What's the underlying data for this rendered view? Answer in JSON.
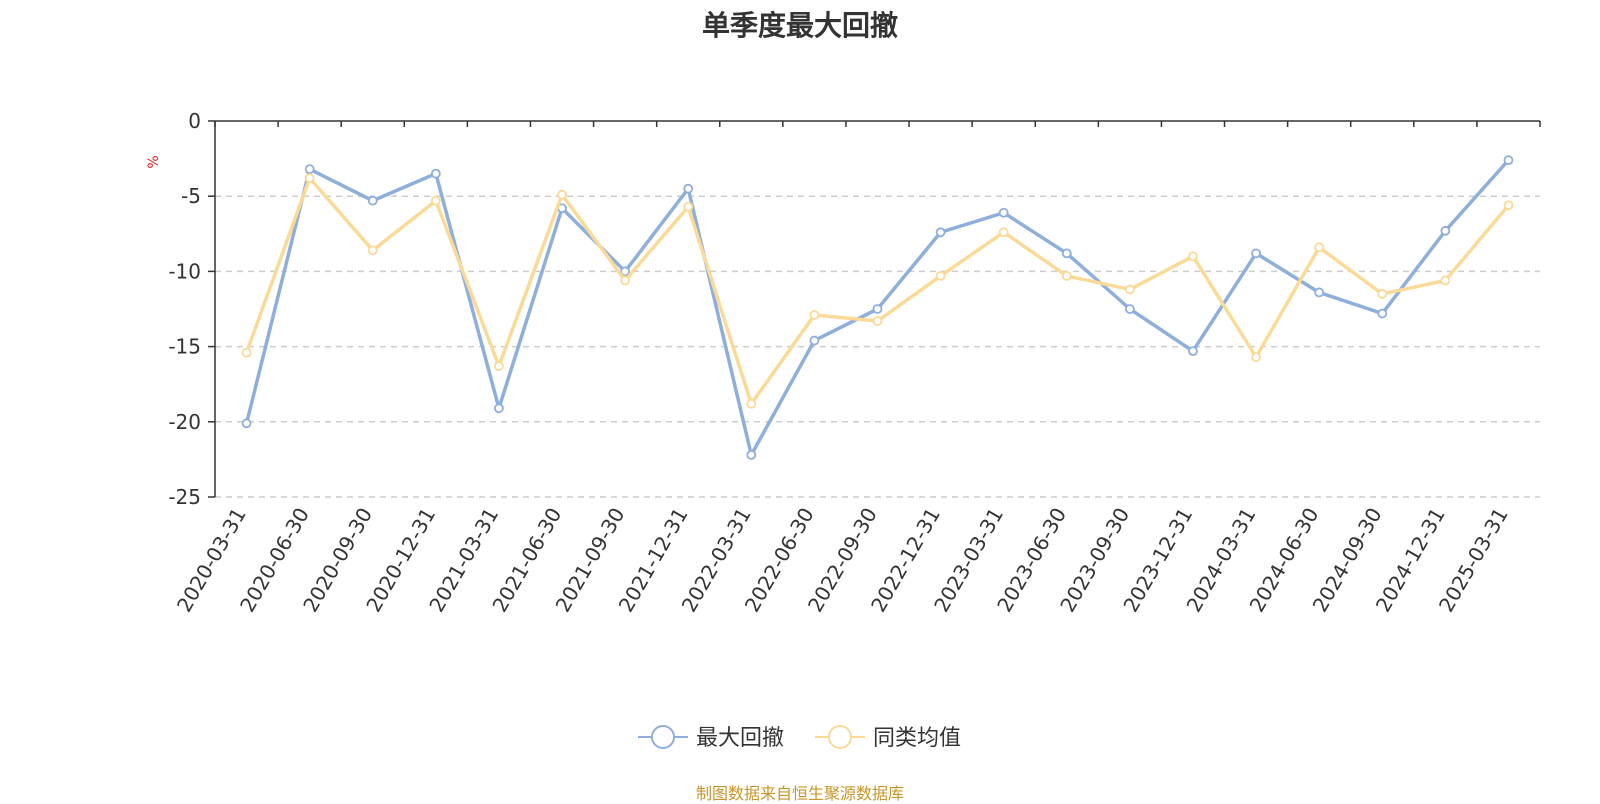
{
  "chart_data": {
    "type": "line",
    "title": "单季度最大回撤",
    "ylabel": "%",
    "ylim": [
      -25,
      0
    ],
    "yticks": [
      0,
      -5,
      -10,
      -15,
      -20,
      -25
    ],
    "grid": true,
    "legend_position": "bottom-center",
    "categories": [
      "2020-03-31",
      "2020-06-30",
      "2020-09-30",
      "2020-12-31",
      "2021-03-31",
      "2021-06-30",
      "2021-09-30",
      "2021-12-31",
      "2022-03-31",
      "2022-06-30",
      "2022-09-30",
      "2022-12-31",
      "2023-03-31",
      "2023-06-30",
      "2023-09-30",
      "2023-12-31",
      "2024-03-31",
      "2024-06-30",
      "2024-09-30",
      "2024-12-31",
      "2025-03-31"
    ],
    "series": [
      {
        "name": "最大回撤",
        "color": "#8eaedc",
        "values": [
          -20.1,
          -3.2,
          -5.3,
          -3.5,
          -19.1,
          -5.8,
          -10.0,
          -4.5,
          -22.2,
          -14.6,
          -12.5,
          -7.4,
          -6.1,
          -8.8,
          -12.5,
          -15.3,
          -8.8,
          -11.4,
          -12.8,
          -7.3,
          -2.6
        ]
      },
      {
        "name": "同类均值",
        "color": "#fbd997",
        "values": [
          -15.4,
          -3.8,
          -8.6,
          -5.3,
          -16.3,
          -4.9,
          -10.6,
          -5.7,
          -18.8,
          -12.9,
          -13.3,
          -10.3,
          -7.4,
          -10.3,
          -11.2,
          -9.0,
          -15.7,
          -8.4,
          -11.5,
          -10.6,
          -5.6
        ]
      }
    ]
  },
  "source_note": "制图数据来自恒生聚源数据库",
  "colors": {
    "ylabel": "#e02020",
    "source_note": "#c8952b",
    "grid": "#cccccc",
    "axis": "#333333"
  }
}
